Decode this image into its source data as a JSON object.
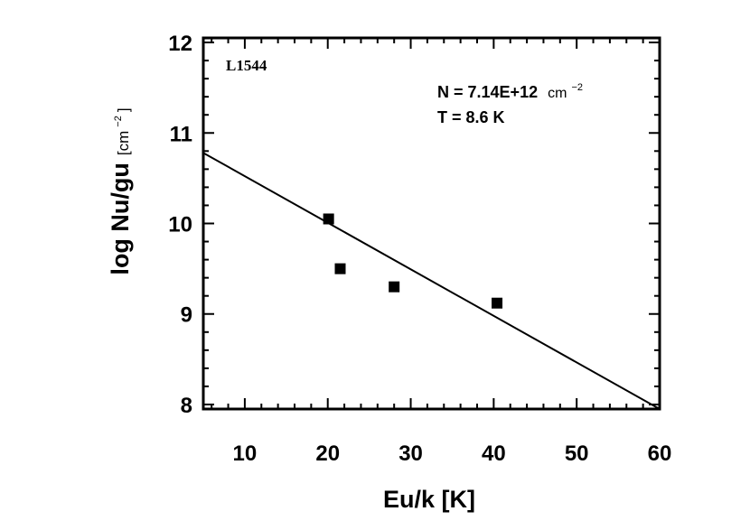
{
  "chart_data": {
    "type": "scatter",
    "source_label": "L1544",
    "xlabel": "Eu/k [K]",
    "ylabel_main": "log Nu/gu",
    "ylabel_unit": "[cm",
    "ylabel_exp": "−2",
    "ylabel_close": "]",
    "xlim": [
      5,
      60
    ],
    "ylim": [
      7.95,
      12.05
    ],
    "xticks": [
      10,
      20,
      30,
      40,
      50,
      60
    ],
    "yticks": [
      8,
      9,
      10,
      11,
      12
    ],
    "points": [
      {
        "x": 20.1,
        "y": 10.05
      },
      {
        "x": 21.5,
        "y": 9.5
      },
      {
        "x": 28.0,
        "y": 9.3
      },
      {
        "x": 40.4,
        "y": 9.12
      }
    ],
    "fit_line": {
      "x": [
        5,
        60
      ],
      "y": [
        10.78,
        7.95
      ]
    },
    "annotation": {
      "column_density_prefix": "N = 7.14E+12",
      "column_density_unit": "cm",
      "column_density_exp": "−2",
      "temperature": "T = 8.6 K"
    },
    "grid": false
  }
}
